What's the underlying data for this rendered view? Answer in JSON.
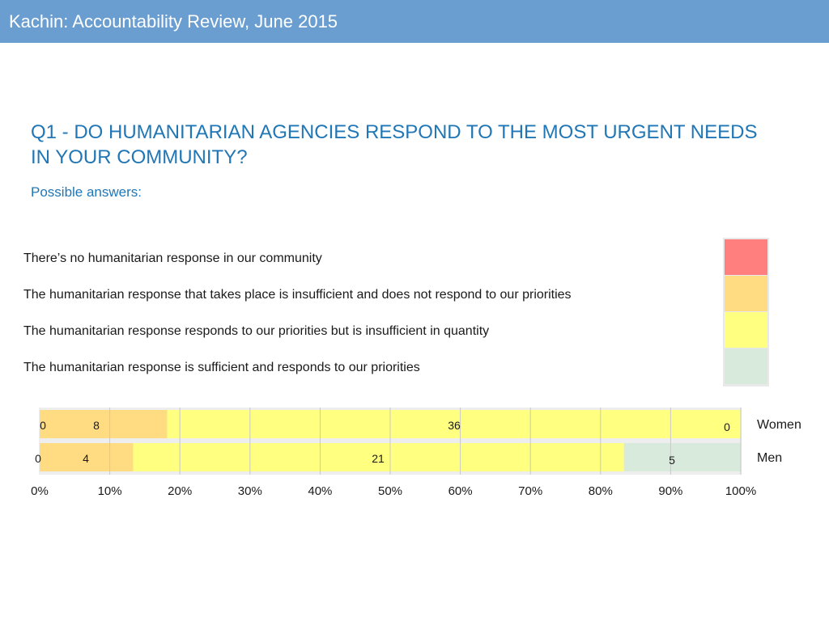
{
  "header": {
    "title": "Kachin: Accountability Review, June 2015"
  },
  "question": "Q1 - DO HUMANITARIAN AGENCIES RESPOND TO THE MOST URGENT NEEDS IN YOUR COMMUNITY?",
  "subtitle": "Possible answers:",
  "answers": [
    {
      "label": "There’s no humanitarian response in our community",
      "color": "#ff7f7f"
    },
    {
      "label": "The humanitarian response that takes place is insufficient and does not respond to our priorities",
      "color": "#ffdc82"
    },
    {
      "label": "The humanitarian response responds to our priorities but is insufficient in quantity",
      "color": "#ffff80"
    },
    {
      "label": "The humanitarian response is sufficient and responds to our priorities",
      "color": "#d8eadc"
    }
  ],
  "chart_data": {
    "type": "bar",
    "orientation": "horizontal",
    "stacked": "percent",
    "categories": [
      "Women",
      "Men"
    ],
    "series": [
      {
        "name": "There’s no humanitarian response in our community",
        "color": "#ff7f7f",
        "values": [
          0,
          0
        ]
      },
      {
        "name": "The humanitarian response that takes place is insufficient and does not respond to our priorities",
        "color": "#ffdc82",
        "values": [
          8,
          4
        ]
      },
      {
        "name": "The humanitarian response responds to our priorities but is insufficient in quantity",
        "color": "#ffff80",
        "values": [
          36,
          21
        ]
      },
      {
        "name": "The humanitarian response is sufficient and responds to our priorities",
        "color": "#d8eadc",
        "values": [
          0,
          5
        ]
      }
    ],
    "xlim": [
      0,
      100
    ],
    "x_ticks": [
      "0%",
      "10%",
      "20%",
      "30%",
      "40%",
      "50%",
      "60%",
      "70%",
      "80%",
      "90%",
      "100%"
    ],
    "grid": true
  }
}
